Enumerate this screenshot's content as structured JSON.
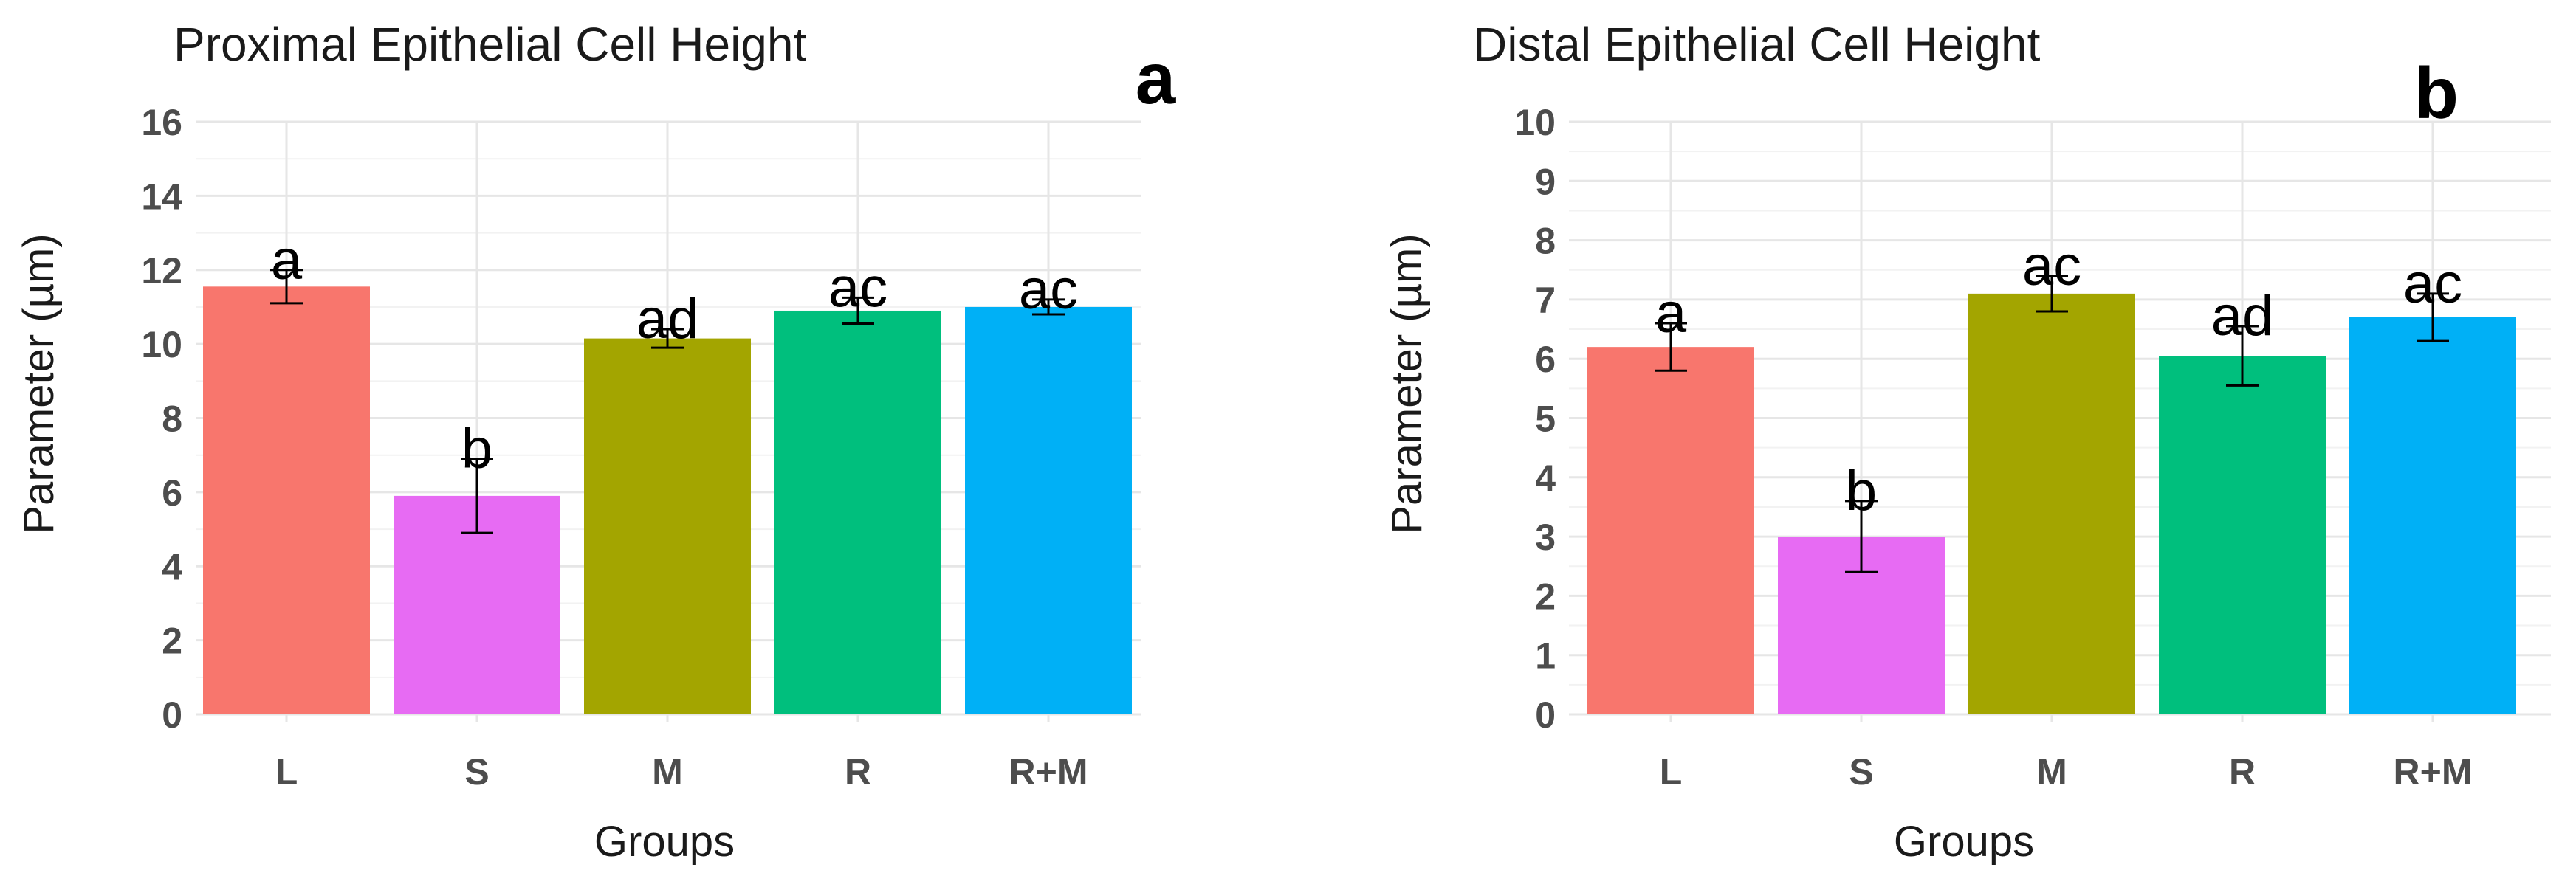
{
  "chart_data": [
    {
      "type": "bar",
      "panel_label": "a",
      "title": "Proximal Epithelial Cell Height",
      "xlabel": "Groups",
      "ylabel": "Parameter (µm)",
      "ylim": [
        0,
        16
      ],
      "yticks": [
        0,
        2,
        4,
        6,
        8,
        10,
        12,
        14,
        16
      ],
      "categories": [
        "L",
        "S",
        "M",
        "R",
        "R+M"
      ],
      "values": [
        11.55,
        5.9,
        10.15,
        10.9,
        11.0
      ],
      "errors": [
        0.45,
        1.0,
        0.25,
        0.35,
        0.2
      ],
      "labels": [
        "a",
        "b",
        "ad",
        "ac",
        "ac"
      ],
      "colors": [
        "#F8766D",
        "#E76BF3",
        "#A3A500",
        "#00BF7D",
        "#00B0F6"
      ],
      "grid": true
    },
    {
      "type": "bar",
      "panel_label": "b",
      "title": "Distal Epithelial Cell Height",
      "xlabel": "Groups",
      "ylabel": "Parameter (µm)",
      "ylim": [
        0,
        10
      ],
      "yticks": [
        0,
        1,
        2,
        3,
        4,
        5,
        6,
        7,
        8,
        9,
        10
      ],
      "categories": [
        "L",
        "S",
        "M",
        "R",
        "R+M"
      ],
      "values": [
        6.2,
        3.0,
        7.1,
        6.05,
        6.7
      ],
      "errors": [
        0.4,
        0.6,
        0.3,
        0.5,
        0.4
      ],
      "labels": [
        "a",
        "b",
        "ac",
        "ad",
        "ac"
      ],
      "colors": [
        "#F8766D",
        "#E76BF3",
        "#A3A500",
        "#00BF7D",
        "#00B0F6"
      ],
      "grid": true
    }
  ]
}
